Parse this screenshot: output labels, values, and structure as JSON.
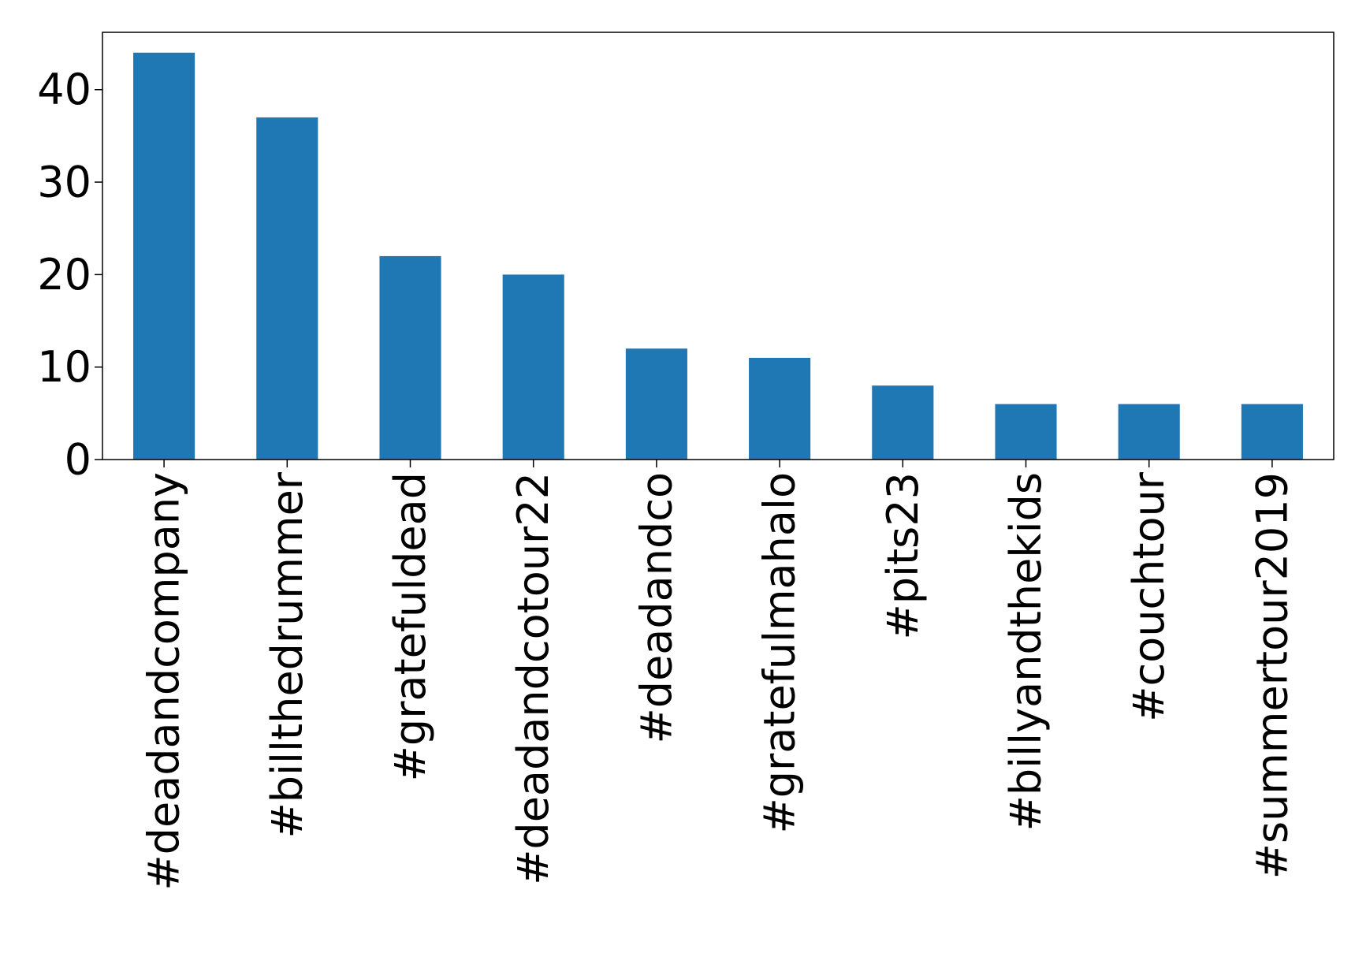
{
  "chart_data": {
    "type": "bar",
    "categories": [
      "#deadandcompany",
      "#billthedrummer",
      "#gratefuldead",
      "#deadandcotour22",
      "#deadandco",
      "#gratefulmahalo",
      "#pits23",
      "#billyandthekids",
      "#couchtour",
      "#summertour2019"
    ],
    "values": [
      44,
      37,
      22,
      20,
      12,
      11,
      8,
      6,
      6,
      6
    ],
    "ylim": [
      0,
      46.2
    ],
    "yticks": [
      0,
      10,
      20,
      30,
      40
    ],
    "title": "",
    "xlabel": "",
    "ylabel": "",
    "grid": false,
    "bar_color": "#1f77b4",
    "axis_color": "#000000"
  }
}
